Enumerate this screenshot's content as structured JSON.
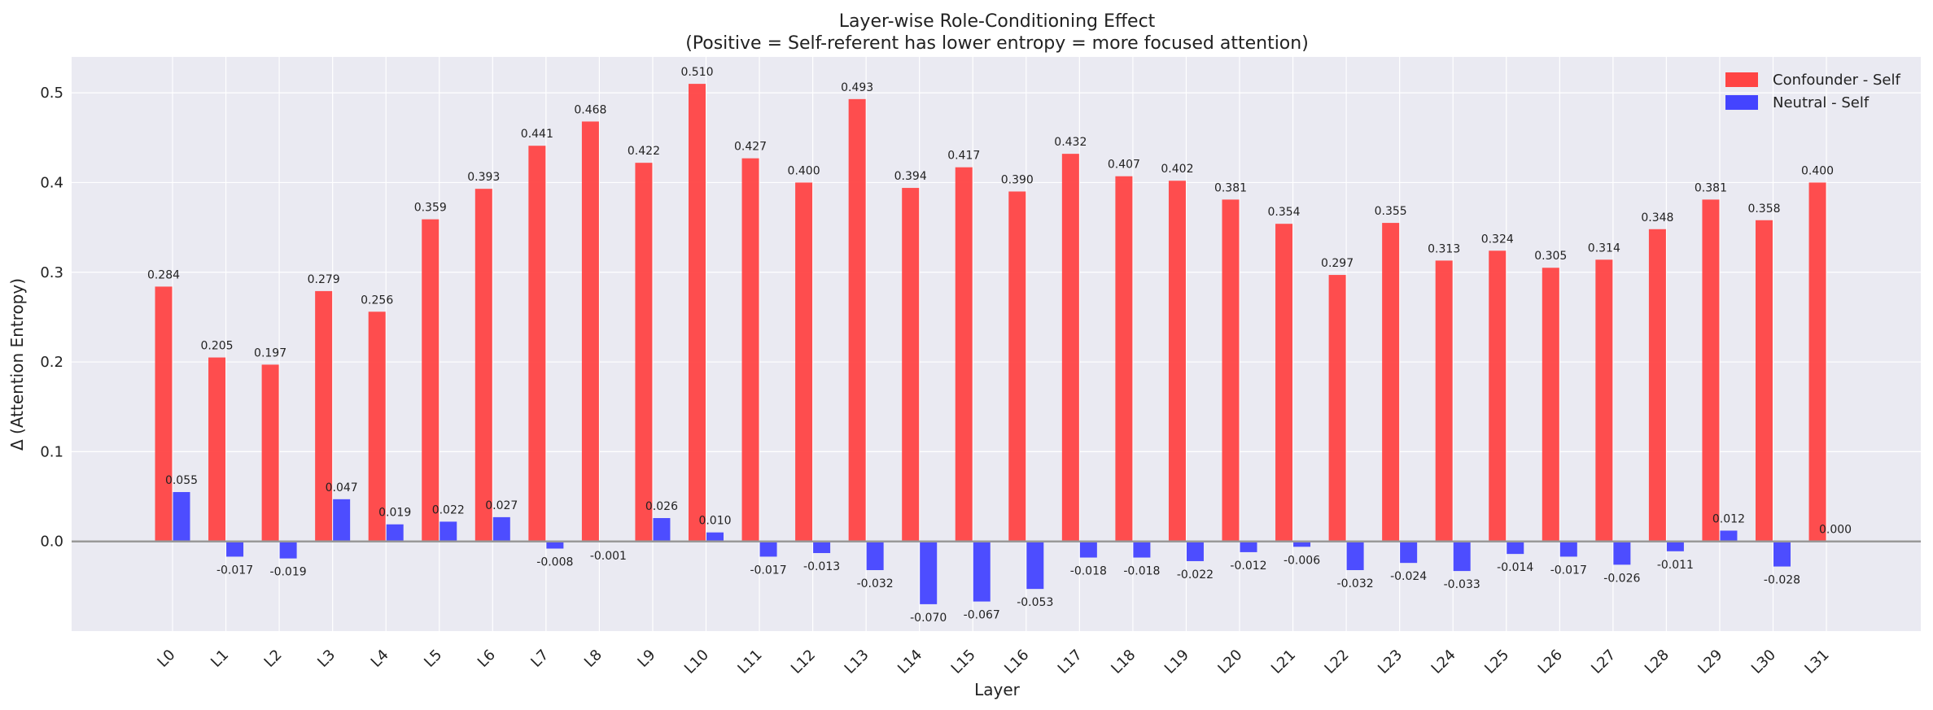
{
  "chart_data": {
    "type": "bar",
    "title": "Layer-wise Role-Conditioning Effect",
    "subtitle": "(Positive = Self-referent has lower entropy = more focused attention)",
    "xlabel": "Layer",
    "ylabel": "Δ (Attention Entropy)",
    "ylim": [
      -0.1,
      0.54
    ],
    "yticks": [
      "0.0",
      "0.1",
      "0.2",
      "0.3",
      "0.4",
      "0.5"
    ],
    "grid": true,
    "legend_position": "top-right",
    "categories": [
      "L0",
      "L1",
      "L2",
      "L3",
      "L4",
      "L5",
      "L6",
      "L7",
      "L8",
      "L9",
      "L10",
      "L11",
      "L12",
      "L13",
      "L14",
      "L15",
      "L16",
      "L17",
      "L18",
      "L19",
      "L20",
      "L21",
      "L22",
      "L23",
      "L24",
      "L25",
      "L26",
      "L27",
      "L28",
      "L29",
      "L30",
      "L31"
    ],
    "series": [
      {
        "name": "Confounder - Self",
        "color": "#ff4444",
        "values": [
          0.284,
          0.205,
          0.197,
          0.279,
          0.256,
          0.359,
          0.393,
          0.441,
          0.468,
          0.422,
          0.51,
          0.427,
          0.4,
          0.493,
          0.394,
          0.417,
          0.39,
          0.432,
          0.407,
          0.402,
          0.381,
          0.354,
          0.297,
          0.355,
          0.313,
          0.324,
          0.305,
          0.314,
          0.348,
          0.381,
          0.358,
          0.4
        ],
        "labels": [
          "0.284",
          "0.205",
          "0.197",
          "0.279",
          "0.256",
          "0.359",
          "0.393",
          "0.441",
          "0.468",
          "0.422",
          "0.510",
          "0.427",
          "0.400",
          "0.493",
          "0.394",
          "0.417",
          "0.390",
          "0.432",
          "0.407",
          "0.402",
          "0.381",
          "0.354",
          "0.297",
          "0.355",
          "0.313",
          "0.324",
          "0.305",
          "0.314",
          "0.348",
          "0.381",
          "0.358",
          "0.400"
        ]
      },
      {
        "name": "Neutral - Self",
        "color": "#4444ff",
        "values": [
          0.055,
          -0.017,
          -0.019,
          0.047,
          0.019,
          0.022,
          0.027,
          -0.008,
          -0.001,
          0.026,
          0.01,
          -0.017,
          -0.013,
          -0.032,
          -0.07,
          -0.067,
          -0.053,
          -0.018,
          -0.018,
          -0.022,
          -0.012,
          -0.006,
          -0.032,
          -0.024,
          -0.033,
          -0.014,
          -0.017,
          -0.026,
          -0.011,
          0.012,
          -0.028,
          0.0
        ],
        "labels": [
          "0.055",
          "-0.017",
          "-0.019",
          "0.047",
          "0.019",
          "0.022",
          "0.027",
          "-0.008",
          "-0.001",
          "0.026",
          "0.010",
          "-0.017",
          "-0.013",
          "-0.032",
          "-0.070",
          "-0.067",
          "-0.053",
          "-0.018",
          "-0.018",
          "-0.022",
          "-0.012",
          "-0.006",
          "-0.032",
          "-0.024",
          "-0.033",
          "-0.014",
          "-0.017",
          "-0.026",
          "-0.011",
          "0.012",
          "-0.028",
          "0.000"
        ]
      }
    ],
    "colors": {
      "plot_background": "#eaeaf2",
      "grid": "#ffffff",
      "zero_line": "#999999"
    }
  }
}
